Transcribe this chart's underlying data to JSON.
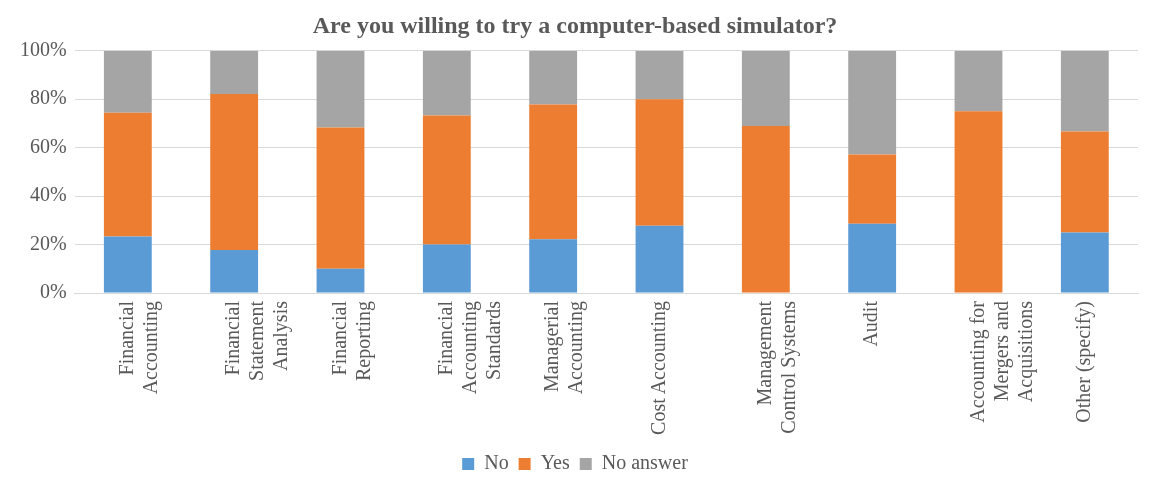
{
  "chart_data": {
    "type": "bar",
    "title": "Are you willing to try a computer-based simulator?",
    "stacked": true,
    "categories": [
      "Financial Accounting",
      "Financial Statement Analysis",
      "Financial Reporting",
      "Financial Accounting Standards",
      "Managerial Accounting",
      "Cost Accounting",
      "Management Control Systems",
      "Audit",
      "Accounting for Mergers and Acquisitions",
      "Other (specify)"
    ],
    "series": [
      {
        "name": "No",
        "color": "#5b9bd5",
        "values": [
          23.3,
          17.8,
          10,
          20,
          22.2,
          27.8,
          0,
          28.6,
          0,
          25
        ]
      },
      {
        "name": "Yes",
        "color": "#ed7d31",
        "values": [
          51.1,
          64.4,
          58.3,
          53.3,
          55.6,
          52.2,
          69,
          28.6,
          75,
          41.7
        ]
      },
      {
        "name": "No answer",
        "color": "#a5a5a5",
        "values": [
          25.6,
          17.8,
          31.7,
          26.7,
          22.2,
          20,
          31,
          42.8,
          25,
          33.3
        ]
      }
    ],
    "ylim": [
      0,
      100
    ],
    "yticks": [
      {
        "value": 0,
        "label": "0%"
      },
      {
        "value": 20,
        "label": "20%"
      },
      {
        "value": 40,
        "label": "40%"
      },
      {
        "value": 60,
        "label": "60%"
      },
      {
        "value": 80,
        "label": "80%"
      },
      {
        "value": 100,
        "label": "100%"
      }
    ],
    "grid": "y",
    "legend": "bottom"
  }
}
